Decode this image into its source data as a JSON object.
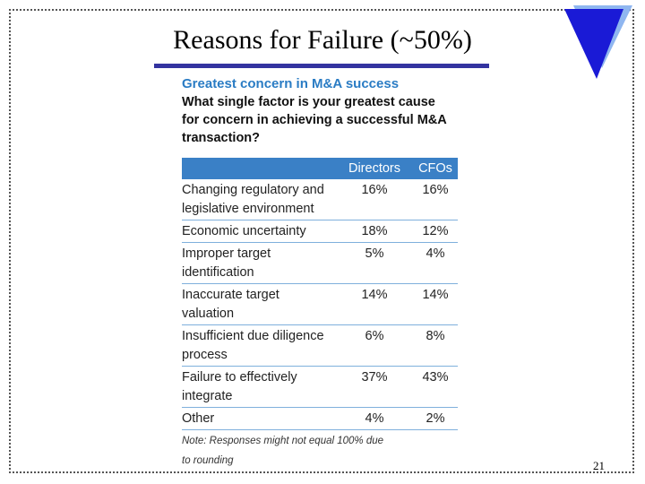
{
  "slide": {
    "title": "Reasons for Failure (~50%)",
    "page_number": "21",
    "table": {
      "heading": "Greatest concern in M&A success",
      "question": [
        "What single factor is your greatest cause",
        "for concern in achieving a successful M&A",
        "transaction?"
      ],
      "columns": [
        "Directors",
        "CFOs"
      ],
      "rows": [
        {
          "label": [
            "Changing regulatory and",
            "legislative environment"
          ],
          "values": [
            "16%",
            "16%"
          ]
        },
        {
          "label": [
            "Economic uncertainty"
          ],
          "values": [
            "18%",
            "12%"
          ]
        },
        {
          "label": [
            "Improper target",
            "identification"
          ],
          "values": [
            "5%",
            "4%"
          ]
        },
        {
          "label": [
            "Inaccurate target",
            "valuation"
          ],
          "values": [
            "14%",
            "14%"
          ]
        },
        {
          "label": [
            "Insufficient due diligence",
            "process"
          ],
          "values": [
            "6%",
            "8%"
          ]
        },
        {
          "label": [
            "Failure to effectively",
            "integrate"
          ],
          "values": [
            "37%",
            "43%"
          ]
        },
        {
          "label": [
            "Other"
          ],
          "values": [
            "4%",
            "2%"
          ]
        }
      ],
      "note": [
        "Note: Responses might not equal 100% due",
        "to rounding"
      ]
    }
  }
}
